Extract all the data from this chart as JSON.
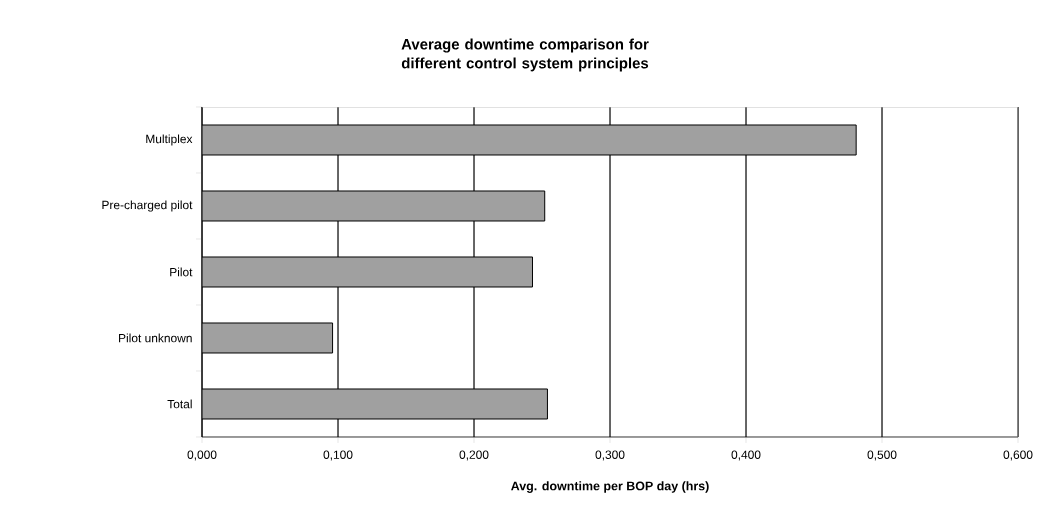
{
  "chart_data": {
    "type": "bar",
    "orientation": "horizontal",
    "title": "Average downtime comparison for different control system principles",
    "categories": [
      "Multiplex",
      "Pre-charged pilot",
      "Pilot",
      "Pilot unknown",
      "Total"
    ],
    "values": [
      0.481,
      0.252,
      0.243,
      0.096,
      0.254
    ],
    "color": "#a0a0a0",
    "xlabel": "Avg. downtime per BOP day (hrs)",
    "xlim": [
      0,
      0.6
    ],
    "xticks": [
      {
        "value": 0,
        "label": "0,000"
      },
      {
        "value": 0.1,
        "label": "0,100"
      },
      {
        "value": 0.2,
        "label": "0,200"
      },
      {
        "value": 0.3,
        "label": "0,300"
      },
      {
        "value": 0.4,
        "label": "0,400"
      },
      {
        "value": 0.5,
        "label": "0,500"
      },
      {
        "value": 0.6,
        "label": "0,600"
      }
    ],
    "grid": "x"
  }
}
